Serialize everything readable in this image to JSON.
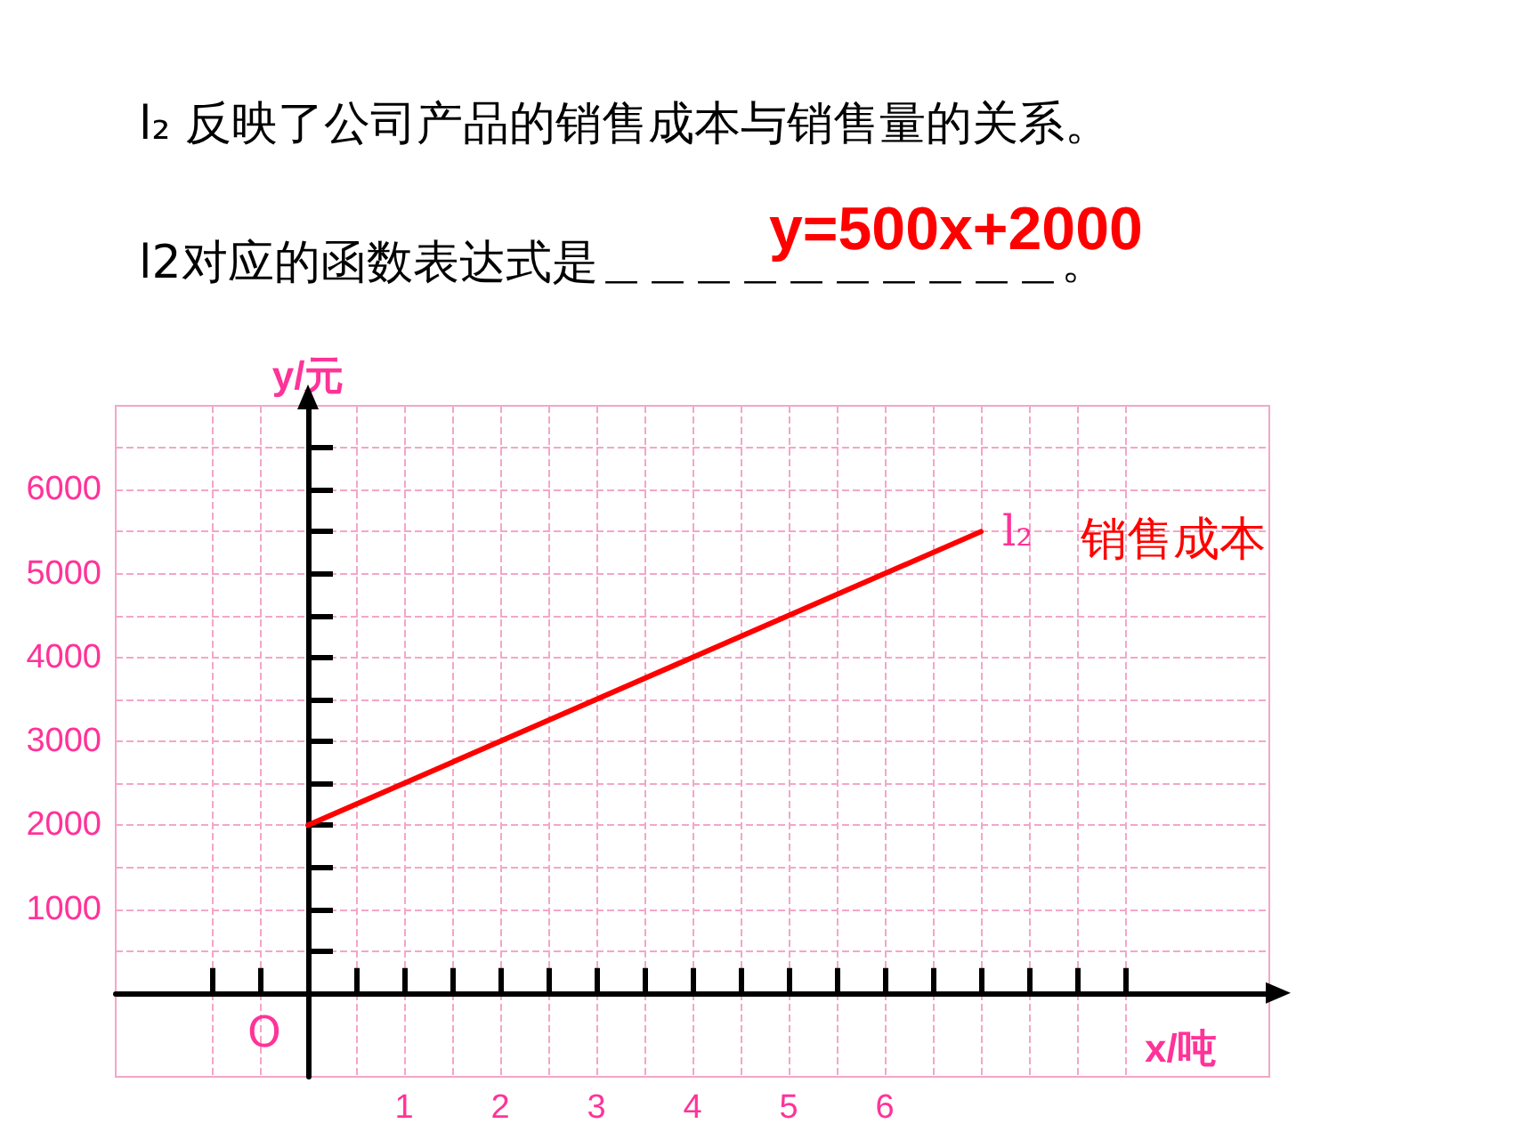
{
  "chart_data": {
    "type": "line",
    "title": "l₂ 反映了公司产品的销售成本与销售量的关系。",
    "subtitle": "l2对应的函数表达式是＿＿＿＿＿＿＿＿＿＿。",
    "xlabel": "x/吨",
    "ylabel": "y/元",
    "x": [
      0,
      7
    ],
    "series": [
      {
        "name": "l₂",
        "color": "#ff0000",
        "values": [
          2000,
          5500
        ]
      }
    ],
    "xlim": [
      -2,
      10
    ],
    "ylim": [
      -1000,
      7000
    ],
    "xticks": [
      {
        "value": -1,
        "label": null
      },
      {
        "value": -0.5,
        "label": null
      },
      {
        "value": 0.5,
        "label": null
      },
      1,
      {
        "value": 1.5,
        "label": null
      },
      2,
      {
        "value": 2.5,
        "label": null
      },
      3,
      {
        "value": 3.5,
        "label": null
      },
      4,
      {
        "value": 4.5,
        "label": null
      },
      5,
      {
        "value": 5.5,
        "label": null
      },
      6,
      {
        "value": 6.5,
        "label": null
      },
      {
        "value": 7,
        "label": null
      },
      {
        "value": 7.5,
        "label": null
      },
      {
        "value": 8,
        "label": null
      },
      {
        "value": 8.5,
        "label": null
      }
    ],
    "yticks": [
      {
        "value": 500,
        "label": null
      },
      1000,
      {
        "value": 1500,
        "label": null
      },
      2000,
      {
        "value": 2500,
        "label": null
      },
      3000,
      {
        "value": 3500,
        "label": null
      },
      4000,
      {
        "value": 4500,
        "label": null
      },
      5000,
      {
        "value": 5500,
        "label": null
      },
      6000,
      {
        "value": 6500,
        "label": null
      }
    ],
    "grid": true,
    "marker": "none",
    "line_style": "solid",
    "legend": false,
    "annotations": [
      "y=500x+2000",
      "O",
      {
        "text": "销售成本",
        "x": 7,
        "y": 5500
      }
    ]
  }
}
